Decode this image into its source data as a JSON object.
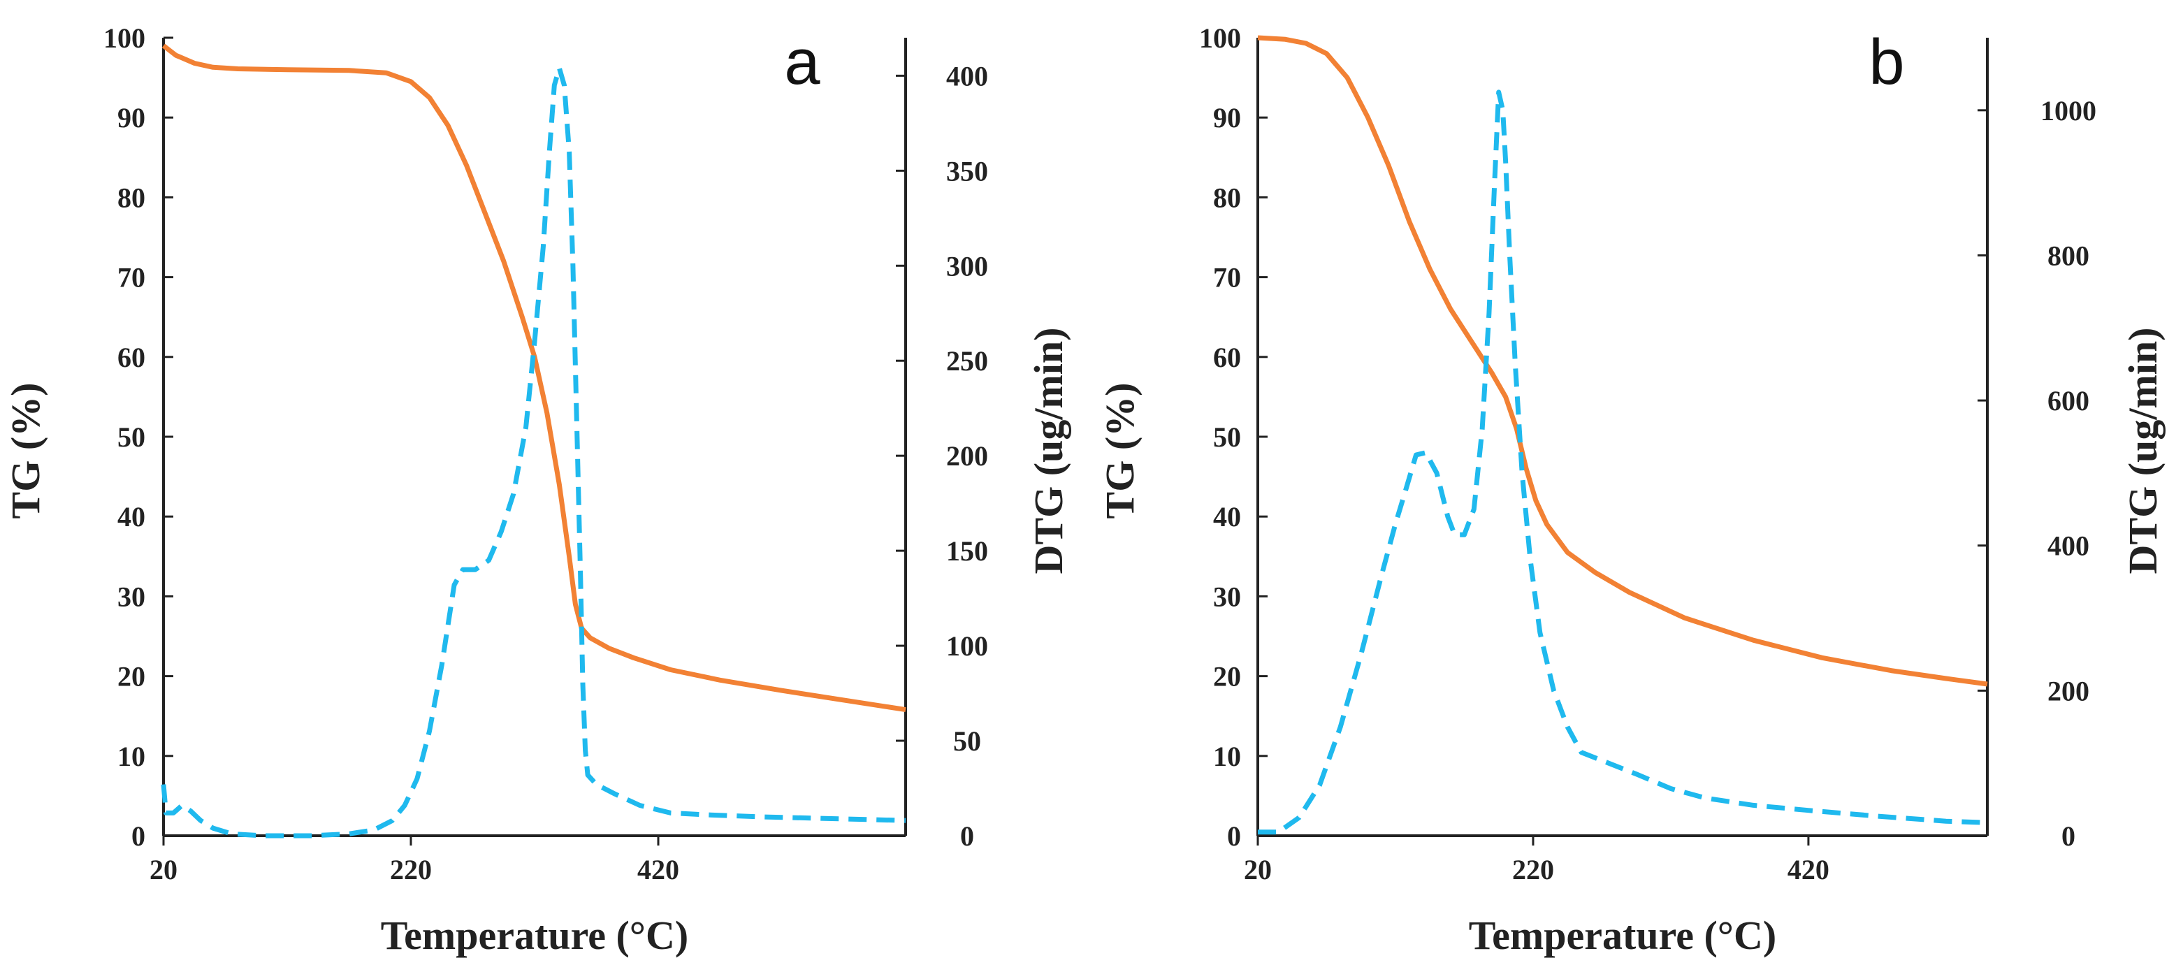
{
  "chart_data": [
    {
      "type": "line",
      "panel": "a",
      "xlabel": "Temperature (°C)",
      "ylabel": "TG (%)",
      "y2label": "DTG (ug/min)",
      "xlim": [
        20,
        620
      ],
      "ylim": [
        0,
        100
      ],
      "y2lim": [
        0,
        420
      ],
      "xticks": [
        20,
        220,
        420
      ],
      "yticks": [
        0,
        10,
        20,
        30,
        40,
        50,
        60,
        70,
        80,
        90,
        100
      ],
      "y2ticks": [
        0,
        50,
        100,
        150,
        200,
        250,
        300,
        350,
        400
      ],
      "colors": {
        "tg": "#f28134",
        "dtg": "#1fb9ee"
      },
      "series": [
        {
          "name": "TG",
          "axis": "left",
          "style": "solid",
          "points": [
            [
              20,
              99
            ],
            [
              30,
              97.8
            ],
            [
              45,
              96.8
            ],
            [
              60,
              96.3
            ],
            [
              80,
              96.1
            ],
            [
              120,
              96
            ],
            [
              170,
              95.9
            ],
            [
              200,
              95.6
            ],
            [
              220,
              94.5
            ],
            [
              235,
              92.5
            ],
            [
              250,
              89
            ],
            [
              265,
              84
            ],
            [
              280,
              78
            ],
            [
              295,
              72
            ],
            [
              310,
              65
            ],
            [
              320,
              60
            ],
            [
              330,
              53
            ],
            [
              340,
              44
            ],
            [
              348,
              35
            ],
            [
              353,
              29
            ],
            [
              358,
              26
            ],
            [
              365,
              24.8
            ],
            [
              380,
              23.5
            ],
            [
              400,
              22.3
            ],
            [
              430,
              20.8
            ],
            [
              470,
              19.5
            ],
            [
              520,
              18.2
            ],
            [
              570,
              17
            ],
            [
              620,
              15.8
            ]
          ]
        },
        {
          "name": "DTG",
          "axis": "right",
          "style": "dashed",
          "points": [
            [
              20,
              27
            ],
            [
              22,
              12
            ],
            [
              28,
              12
            ],
            [
              35,
              16
            ],
            [
              42,
              13
            ],
            [
              50,
              8
            ],
            [
              60,
              4
            ],
            [
              75,
              1
            ],
            [
              100,
              0
            ],
            [
              140,
              0
            ],
            [
              170,
              1
            ],
            [
              190,
              3
            ],
            [
              205,
              8
            ],
            [
              215,
              16
            ],
            [
              225,
              30
            ],
            [
              235,
              55
            ],
            [
              245,
              90
            ],
            [
              255,
              132
            ],
            [
              262,
              140
            ],
            [
              272,
              140
            ],
            [
              283,
              145
            ],
            [
              293,
              160
            ],
            [
              303,
              180
            ],
            [
              313,
              215
            ],
            [
              320,
              260
            ],
            [
              327,
              310
            ],
            [
              332,
              360
            ],
            [
              336,
              395
            ],
            [
              340,
              404
            ],
            [
              344,
              395
            ],
            [
              348,
              360
            ],
            [
              351,
              300
            ],
            [
              354,
              220
            ],
            [
              357,
              140
            ],
            [
              359,
              80
            ],
            [
              361,
              45
            ],
            [
              363,
              32
            ],
            [
              370,
              27
            ],
            [
              385,
              22
            ],
            [
              405,
              16
            ],
            [
              430,
              12
            ],
            [
              460,
              11
            ],
            [
              500,
              10
            ],
            [
              560,
              9
            ],
            [
              620,
              8
            ]
          ]
        }
      ]
    },
    {
      "type": "line",
      "panel": "b",
      "xlabel": "Temperature (°C)",
      "ylabel": "TG (%)",
      "y2label": "DTG (ug/min)",
      "xlim": [
        20,
        550
      ],
      "ylim": [
        0,
        100
      ],
      "y2lim": [
        0,
        1100
      ],
      "xticks": [
        20,
        220,
        420
      ],
      "yticks": [
        0,
        10,
        20,
        30,
        40,
        50,
        60,
        70,
        80,
        90,
        100
      ],
      "y2ticks": [
        0,
        200,
        400,
        600,
        800,
        1000
      ],
      "colors": {
        "tg": "#f28134",
        "dtg": "#1fb9ee"
      },
      "series": [
        {
          "name": "TG",
          "axis": "left",
          "style": "solid",
          "points": [
            [
              20,
              100
            ],
            [
              40,
              99.8
            ],
            [
              55,
              99.3
            ],
            [
              70,
              98
            ],
            [
              85,
              95
            ],
            [
              100,
              90
            ],
            [
              115,
              84
            ],
            [
              130,
              77
            ],
            [
              145,
              71
            ],
            [
              160,
              66
            ],
            [
              175,
              62
            ],
            [
              190,
              58
            ],
            [
              200,
              55
            ],
            [
              208,
              51
            ],
            [
              215,
              46
            ],
            [
              222,
              42
            ],
            [
              230,
              39
            ],
            [
              245,
              35.5
            ],
            [
              265,
              33
            ],
            [
              290,
              30.5
            ],
            [
              330,
              27.3
            ],
            [
              380,
              24.5
            ],
            [
              430,
              22.3
            ],
            [
              480,
              20.7
            ],
            [
              520,
              19.7
            ],
            [
              550,
              19
            ]
          ]
        },
        {
          "name": "DTG",
          "axis": "right",
          "style": "dashed",
          "points": [
            [
              20,
              5
            ],
            [
              35,
              5
            ],
            [
              50,
              25
            ],
            [
              65,
              70
            ],
            [
              80,
              150
            ],
            [
              95,
              250
            ],
            [
              110,
              360
            ],
            [
              120,
              430
            ],
            [
              128,
              480
            ],
            [
              135,
              525
            ],
            [
              142,
              528
            ],
            [
              150,
              500
            ],
            [
              158,
              440
            ],
            [
              163,
              415
            ],
            [
              170,
              415
            ],
            [
              177,
              450
            ],
            [
              183,
              560
            ],
            [
              188,
              720
            ],
            [
              192,
              900
            ],
            [
              195,
              1025
            ],
            [
              198,
              1000
            ],
            [
              200,
              930
            ],
            [
              203,
              800
            ],
            [
              207,
              650
            ],
            [
              212,
              500
            ],
            [
              218,
              380
            ],
            [
              225,
              280
            ],
            [
              235,
              200
            ],
            [
              245,
              150
            ],
            [
              255,
              115
            ],
            [
              275,
              100
            ],
            [
              295,
              85
            ],
            [
              320,
              65
            ],
            [
              345,
              52
            ],
            [
              380,
              42
            ],
            [
              420,
              35
            ],
            [
              470,
              27
            ],
            [
              520,
              20
            ],
            [
              550,
              18
            ]
          ]
        }
      ]
    }
  ]
}
